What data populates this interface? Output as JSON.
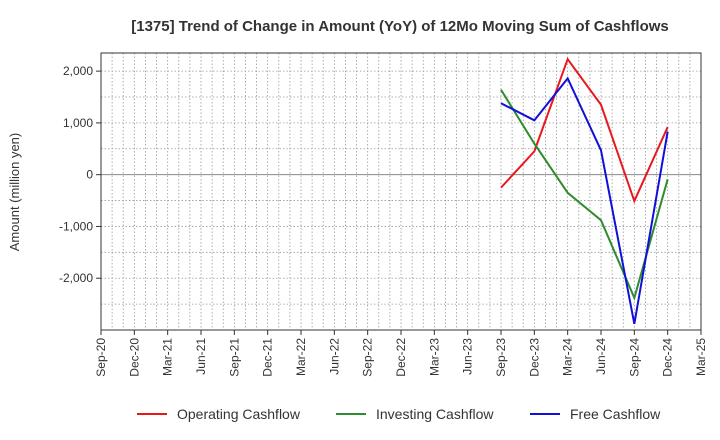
{
  "chart_data": {
    "type": "line",
    "title": "[1375]  Trend of Change in Amount (YoY) of 12Mo Moving Sum of Cashflows",
    "ylabel": "Amount (million yen)",
    "xlabel": "",
    "categories": [
      "Sep-20",
      "Dec-20",
      "Mar-21",
      "Jun-21",
      "Sep-21",
      "Dec-21",
      "Mar-22",
      "Jun-22",
      "Sep-22",
      "Dec-22",
      "Mar-23",
      "Jun-23",
      "Sep-23",
      "Dec-23",
      "Mar-24",
      "Jun-24",
      "Sep-24",
      "Dec-24",
      "Mar-25"
    ],
    "ylim": [
      -3000,
      2350
    ],
    "yticks": [
      2000,
      1000,
      0,
      -1000,
      -2000
    ],
    "ytick_labels": [
      "2,000",
      "1,000",
      "0",
      "-1,000",
      "-2,000"
    ],
    "grid": true,
    "legend_position": "bottom",
    "series": [
      {
        "name": "Operating Cashflow",
        "color": "#e8191e",
        "values": [
          null,
          null,
          null,
          null,
          null,
          null,
          null,
          null,
          null,
          null,
          null,
          null,
          -250,
          450,
          2230,
          1350,
          -510,
          920,
          null
        ]
      },
      {
        "name": "Investing Cashflow",
        "color": "#2e8b2e",
        "values": [
          null,
          null,
          null,
          null,
          null,
          null,
          null,
          null,
          null,
          null,
          null,
          null,
          1640,
          600,
          -350,
          -880,
          -2380,
          -90,
          null
        ]
      },
      {
        "name": "Free Cashflow",
        "color": "#1010d8",
        "values": [
          null,
          null,
          null,
          null,
          null,
          null,
          null,
          null,
          null,
          null,
          null,
          null,
          1380,
          1050,
          1860,
          470,
          -2880,
          830,
          null
        ]
      }
    ]
  }
}
